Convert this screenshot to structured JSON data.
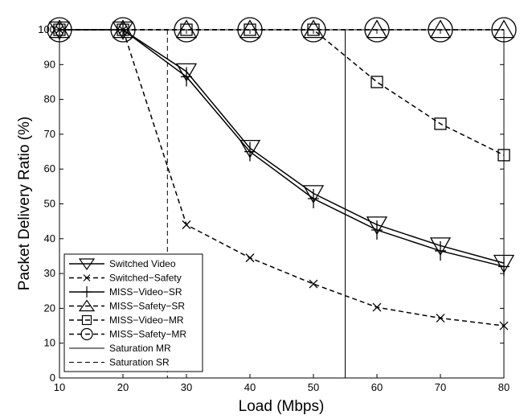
{
  "chart_data": {
    "type": "line",
    "title": "",
    "xlabel": "Load (Mbps)",
    "ylabel": "Packet Delivery Ratio (%)",
    "xlim": [
      10,
      80
    ],
    "ylim": [
      0,
      100
    ],
    "xticks": [
      10,
      20,
      30,
      40,
      50,
      60,
      70,
      80
    ],
    "yticks": [
      0,
      10,
      20,
      30,
      40,
      50,
      60,
      70,
      80,
      90,
      100
    ],
    "x": [
      10,
      20,
      30,
      40,
      50,
      60,
      70,
      80
    ],
    "grid": false,
    "legend_position": "bottom-left",
    "series": [
      {
        "name": "Switched Video",
        "values": [
          100,
          100,
          88,
          66,
          53,
          44,
          38,
          33
        ],
        "marker": "triangle-down",
        "line": "solid",
        "color": "#000000"
      },
      {
        "name": "Switched−Safety",
        "values": [
          100,
          100,
          44,
          34.5,
          27,
          20.3,
          17.2,
          15
        ],
        "marker": "x",
        "line": "dashed",
        "color": "#000000"
      },
      {
        "name": "MISS−Video−SR",
        "values": [
          100,
          100,
          86.5,
          65,
          51.5,
          42.5,
          36.5,
          32
        ],
        "marker": "plus",
        "line": "solid",
        "color": "#000000"
      },
      {
        "name": "MISS−Safety−SR",
        "values": [
          100,
          100,
          100,
          100,
          100,
          100,
          100,
          100
        ],
        "marker": "triangle-up",
        "line": "dashed",
        "color": "#000000"
      },
      {
        "name": "MISS−Video−MR",
        "values": [
          100,
          100,
          100,
          100,
          100,
          85,
          73,
          64
        ],
        "marker": "square",
        "line": "dashed",
        "color": "#000000"
      },
      {
        "name": "MISS−Safety−MR",
        "values": [
          100,
          100,
          100,
          100,
          100,
          100,
          100,
          100
        ],
        "marker": "circle",
        "line": "dashed",
        "color": "#000000"
      }
    ],
    "reference_lines": [
      {
        "name": "Saturation MR",
        "x": 55,
        "line": "solid"
      },
      {
        "name": "Saturation SR",
        "x": 27,
        "line": "dashed"
      }
    ]
  }
}
